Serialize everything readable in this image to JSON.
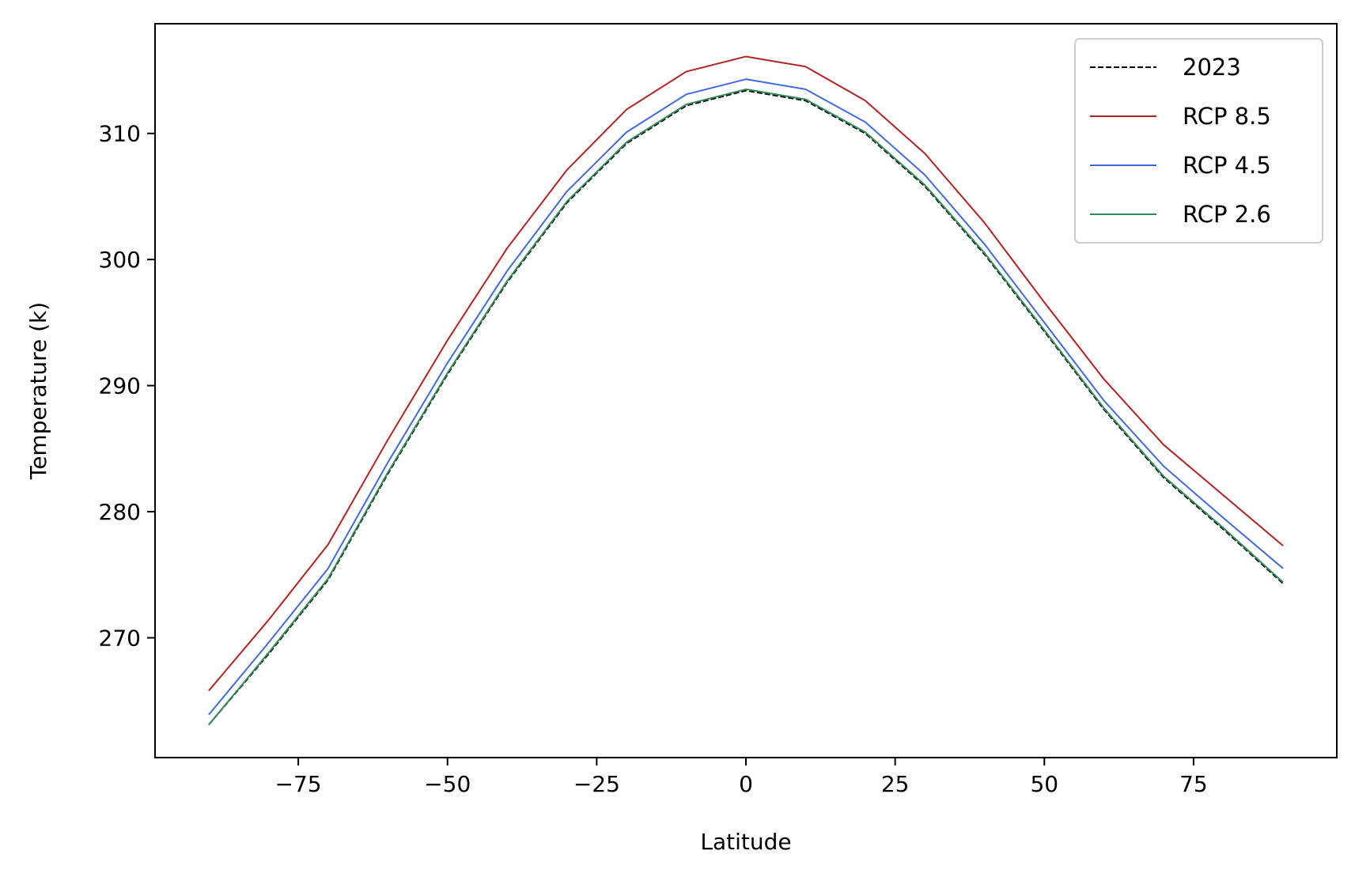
{
  "chart_data": {
    "type": "line",
    "title": "",
    "xlabel": "Latitude",
    "ylabel": "Temperature (k)",
    "xlim": [
      -99,
      99
    ],
    "ylim": [
      260.5,
      318.7
    ],
    "xticks": [
      -75,
      -50,
      -25,
      0,
      25,
      50,
      75
    ],
    "xtick_labels": [
      "−75",
      "−50",
      "−25",
      "0",
      "25",
      "50",
      "75"
    ],
    "yticks": [
      270,
      280,
      290,
      300,
      310
    ],
    "ytick_labels": [
      "270",
      "280",
      "290",
      "300",
      "310"
    ],
    "grid": false,
    "legend": "top-right",
    "x": [
      -90,
      -80,
      -70,
      -60,
      -50,
      -40,
      -30,
      -20,
      -10,
      0,
      10,
      20,
      30,
      40,
      50,
      60,
      70,
      80,
      90
    ],
    "series": [
      {
        "name": "2023",
        "color": "#000000",
        "dash": "dashed",
        "values": [
          263.1,
          268.7,
          274.6,
          283.0,
          290.9,
          298.2,
          304.5,
          309.2,
          312.2,
          313.4,
          312.6,
          310.0,
          305.8,
          300.4,
          294.3,
          288.1,
          282.7,
          278.6,
          274.3
        ]
      },
      {
        "name": "RCP 8.5",
        "color": "#b22222",
        "dash": "solid",
        "values": [
          265.8,
          271.4,
          277.4,
          285.7,
          293.6,
          300.9,
          307.1,
          311.9,
          314.9,
          316.1,
          315.3,
          312.6,
          308.4,
          302.9,
          296.6,
          290.5,
          285.3,
          281.3,
          277.3
        ]
      },
      {
        "name": "RCP 4.5",
        "color": "#4169e1",
        "dash": "solid",
        "values": [
          263.9,
          269.6,
          275.5,
          283.9,
          291.8,
          299.1,
          305.4,
          310.1,
          313.1,
          314.3,
          313.5,
          310.9,
          306.7,
          301.2,
          295.0,
          288.8,
          283.6,
          279.5,
          275.5
        ]
      },
      {
        "name": "RCP 2.6",
        "color": "#2e8b57",
        "dash": "solid",
        "values": [
          263.1,
          268.8,
          274.7,
          283.1,
          291.0,
          298.3,
          304.6,
          309.3,
          312.3,
          313.5,
          312.7,
          310.1,
          305.9,
          300.5,
          294.4,
          288.2,
          282.8,
          278.7,
          274.4
        ]
      }
    ]
  }
}
